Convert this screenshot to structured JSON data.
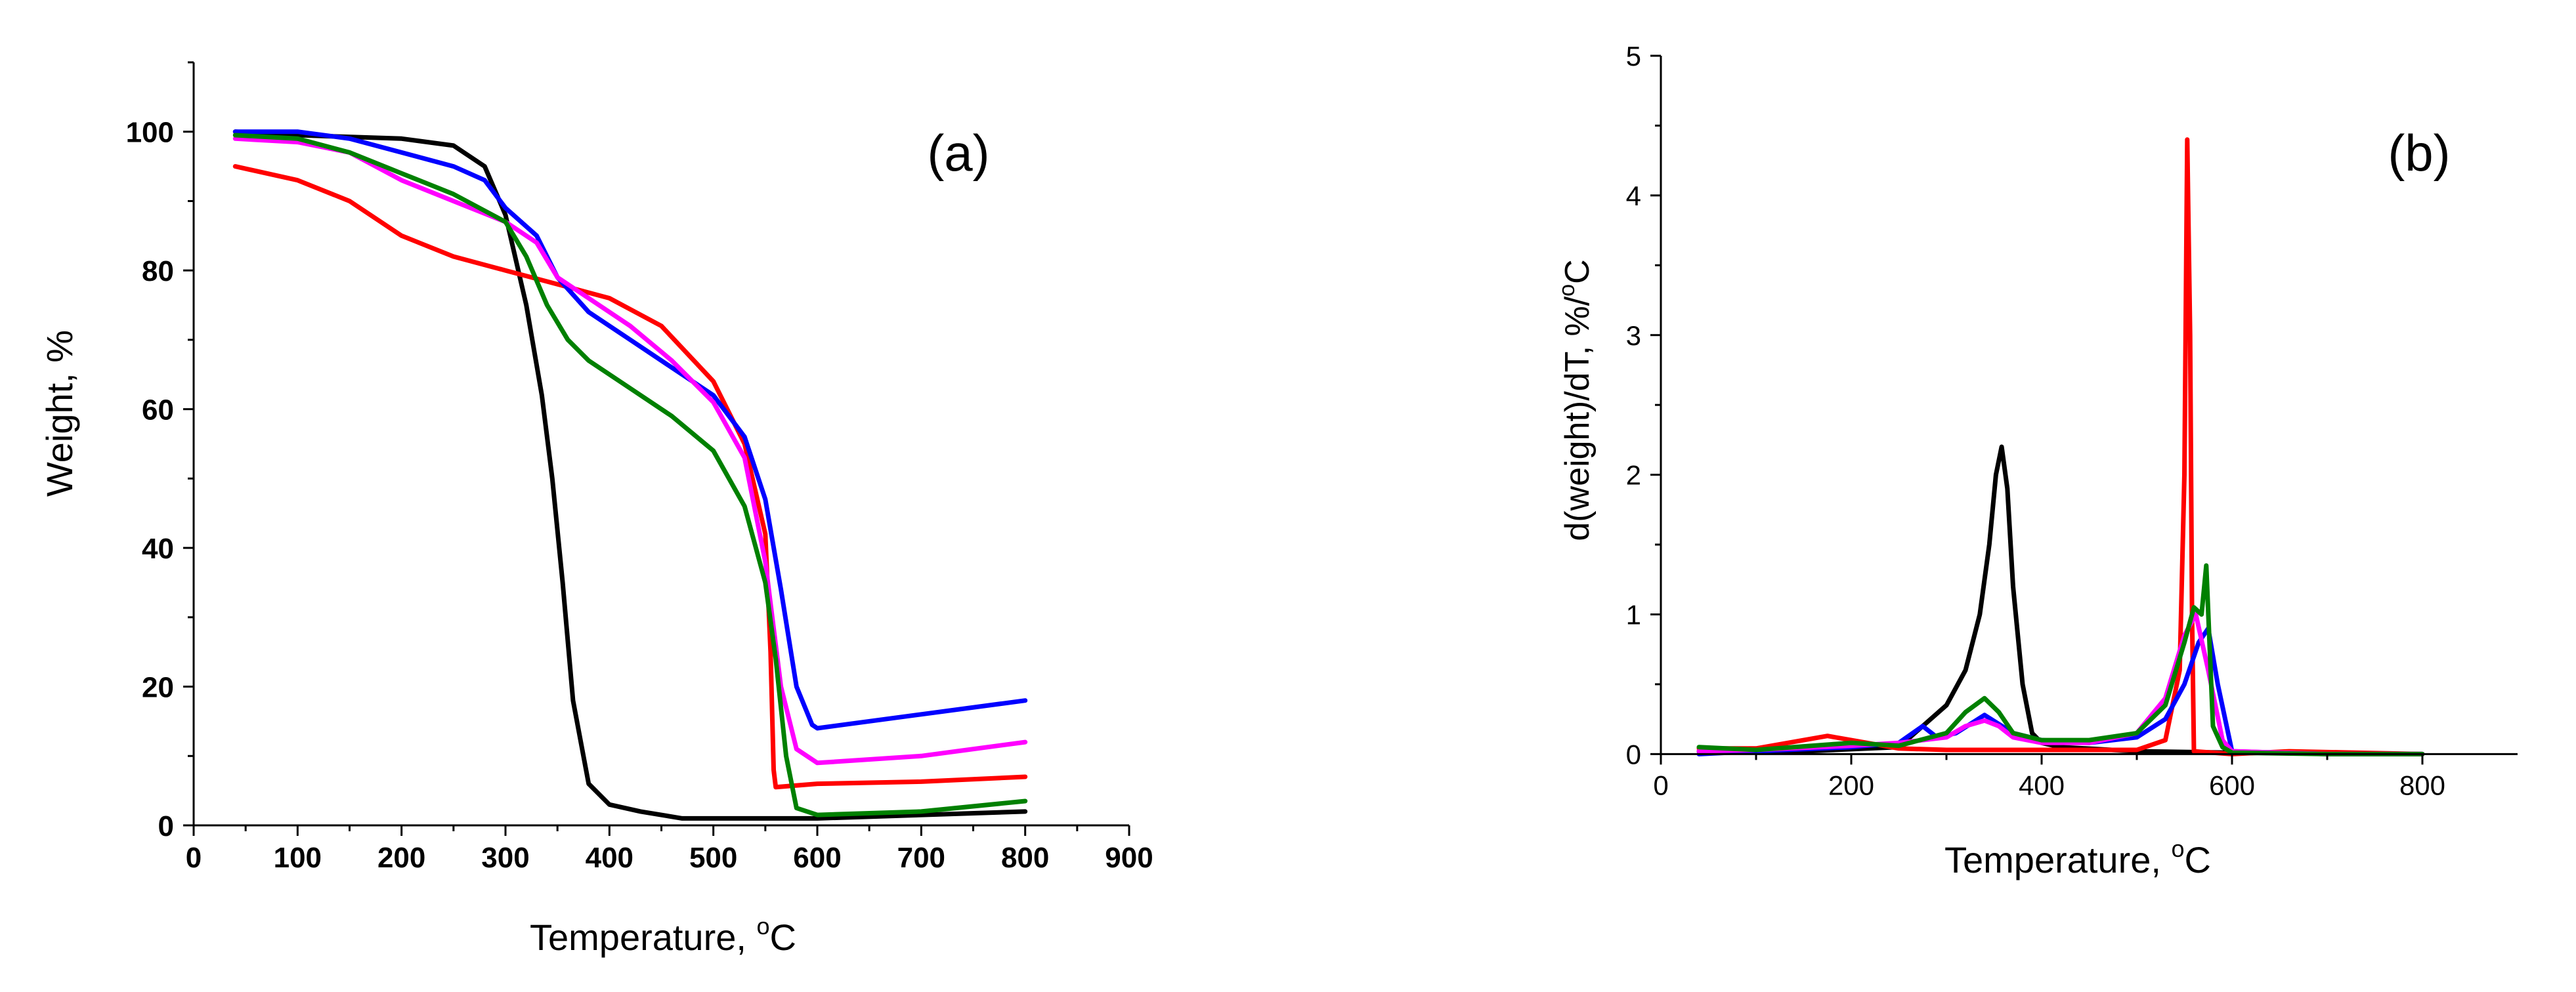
{
  "chart_data": [
    {
      "type": "line",
      "panel_label": "(a)",
      "xlabel": "Temperature, ",
      "xlabel_unit_sup": "o",
      "xlabel_unit_tail": "C",
      "ylabel": "Weight, %",
      "xlim": [
        0,
        900
      ],
      "ylim": [
        0,
        110
      ],
      "xticks": [
        0,
        100,
        200,
        300,
        400,
        500,
        600,
        700,
        800,
        900
      ],
      "yticks": [
        0,
        20,
        40,
        60,
        80,
        100
      ],
      "series": [
        {
          "name": "black",
          "color": "#000000",
          "x": [
            40,
            100,
            200,
            250,
            280,
            300,
            320,
            335,
            345,
            355,
            365,
            380,
            400,
            430,
            470,
            600,
            800
          ],
          "y": [
            100,
            99.5,
            99,
            98,
            95,
            88,
            75,
            62,
            50,
            35,
            18,
            6,
            3,
            2,
            1,
            1,
            2
          ]
        },
        {
          "name": "red",
          "color": "#ff0000",
          "x": [
            40,
            100,
            150,
            200,
            250,
            300,
            350,
            400,
            450,
            500,
            530,
            550,
            555,
            558,
            560,
            600,
            700,
            800
          ],
          "y": [
            95,
            93,
            90,
            85,
            82,
            80,
            78,
            76,
            72,
            64,
            55,
            42,
            25,
            8,
            5.5,
            6,
            6.3,
            7
          ]
        },
        {
          "name": "blue",
          "color": "#0000ff",
          "x": [
            40,
            100,
            150,
            200,
            250,
            280,
            300,
            330,
            350,
            380,
            420,
            460,
            500,
            530,
            550,
            565,
            580,
            595,
            600,
            700,
            800
          ],
          "y": [
            100,
            100,
            99,
            97,
            95,
            93,
            89,
            85,
            79,
            74,
            70,
            66,
            62,
            56,
            47,
            34,
            20,
            14.5,
            14,
            16,
            18
          ]
        },
        {
          "name": "magenta",
          "color": "#ff00ff",
          "x": [
            40,
            100,
            150,
            200,
            250,
            300,
            330,
            350,
            380,
            420,
            460,
            500,
            530,
            550,
            565,
            580,
            600,
            700,
            800
          ],
          "y": [
            99,
            98.5,
            97,
            93,
            90,
            87,
            84,
            79,
            76,
            72,
            67,
            61,
            53,
            38,
            20,
            11,
            9,
            10,
            12
          ]
        },
        {
          "name": "green",
          "color": "#008000",
          "x": [
            40,
            100,
            150,
            200,
            250,
            300,
            320,
            340,
            360,
            380,
            420,
            460,
            500,
            530,
            550,
            560,
            570,
            580,
            600,
            700,
            800
          ],
          "y": [
            99.5,
            99,
            97,
            94,
            91,
            87,
            82,
            75,
            70,
            67,
            63,
            59,
            54,
            46,
            35,
            24,
            10,
            2.5,
            1.5,
            2,
            3.5
          ]
        }
      ]
    },
    {
      "type": "line",
      "panel_label": "(b)",
      "xlabel": "Temperature, ",
      "xlabel_unit_sup": "o",
      "xlabel_unit_tail": "C",
      "ylabel": "d(weight)/dT, %/",
      "ylabel_unit_sup": "o",
      "ylabel_unit_tail": "C",
      "xlim": [
        0,
        900
      ],
      "ylim": [
        -0.05,
        5
      ],
      "xticks": [
        0,
        200,
        400,
        600,
        800
      ],
      "yticks": [
        0,
        1,
        2,
        3,
        4,
        5
      ],
      "series": [
        {
          "name": "black",
          "color": "#000000",
          "x": [
            40,
            150,
            250,
            300,
            320,
            335,
            345,
            352,
            358,
            364,
            370,
            380,
            390,
            400,
            420,
            500,
            600,
            800
          ],
          "y": [
            0.02,
            0.02,
            0.05,
            0.35,
            0.6,
            1.0,
            1.5,
            2.0,
            2.2,
            1.9,
            1.2,
            0.5,
            0.15,
            0.08,
            0.05,
            0.02,
            0.01,
            0.0
          ]
        },
        {
          "name": "red",
          "color": "#ff0000",
          "x": [
            40,
            100,
            150,
            175,
            200,
            250,
            300,
            400,
            500,
            530,
            545,
            550,
            553,
            556,
            558,
            560,
            600,
            660,
            800
          ],
          "y": [
            0.04,
            0.04,
            0.1,
            0.13,
            0.1,
            0.04,
            0.03,
            0.03,
            0.03,
            0.1,
            0.6,
            2.0,
            4.4,
            3.0,
            1.0,
            0.02,
            0.0,
            0.02,
            0.0
          ]
        },
        {
          "name": "blue",
          "color": "#0000ff",
          "x": [
            40,
            100,
            200,
            250,
            275,
            290,
            310,
            340,
            370,
            400,
            450,
            500,
            530,
            550,
            565,
            575,
            585,
            600,
            700,
            800
          ],
          "y": [
            0.0,
            0.02,
            0.05,
            0.08,
            0.2,
            0.12,
            0.15,
            0.28,
            0.15,
            0.1,
            0.08,
            0.12,
            0.25,
            0.5,
            0.8,
            0.9,
            0.5,
            0.02,
            0.0,
            0.0
          ]
        },
        {
          "name": "magenta",
          "color": "#ff00ff",
          "x": [
            40,
            100,
            200,
            250,
            300,
            320,
            340,
            355,
            370,
            400,
            450,
            500,
            530,
            550,
            562,
            575,
            590,
            600,
            700,
            800
          ],
          "y": [
            0.02,
            0.03,
            0.06,
            0.08,
            0.12,
            0.2,
            0.24,
            0.2,
            0.12,
            0.08,
            0.08,
            0.15,
            0.4,
            0.85,
            1.0,
            0.6,
            0.1,
            0.02,
            0.0,
            0.0
          ]
        },
        {
          "name": "green",
          "color": "#008000",
          "x": [
            40,
            100,
            200,
            250,
            300,
            320,
            340,
            355,
            370,
            400,
            450,
            500,
            530,
            550,
            560,
            568,
            573,
            580,
            590,
            600,
            700,
            800
          ],
          "y": [
            0.05,
            0.03,
            0.08,
            0.06,
            0.15,
            0.3,
            0.4,
            0.3,
            0.15,
            0.1,
            0.1,
            0.15,
            0.35,
            0.8,
            1.05,
            1.0,
            1.35,
            0.2,
            0.05,
            0.01,
            0.0,
            0.0
          ]
        }
      ]
    }
  ]
}
